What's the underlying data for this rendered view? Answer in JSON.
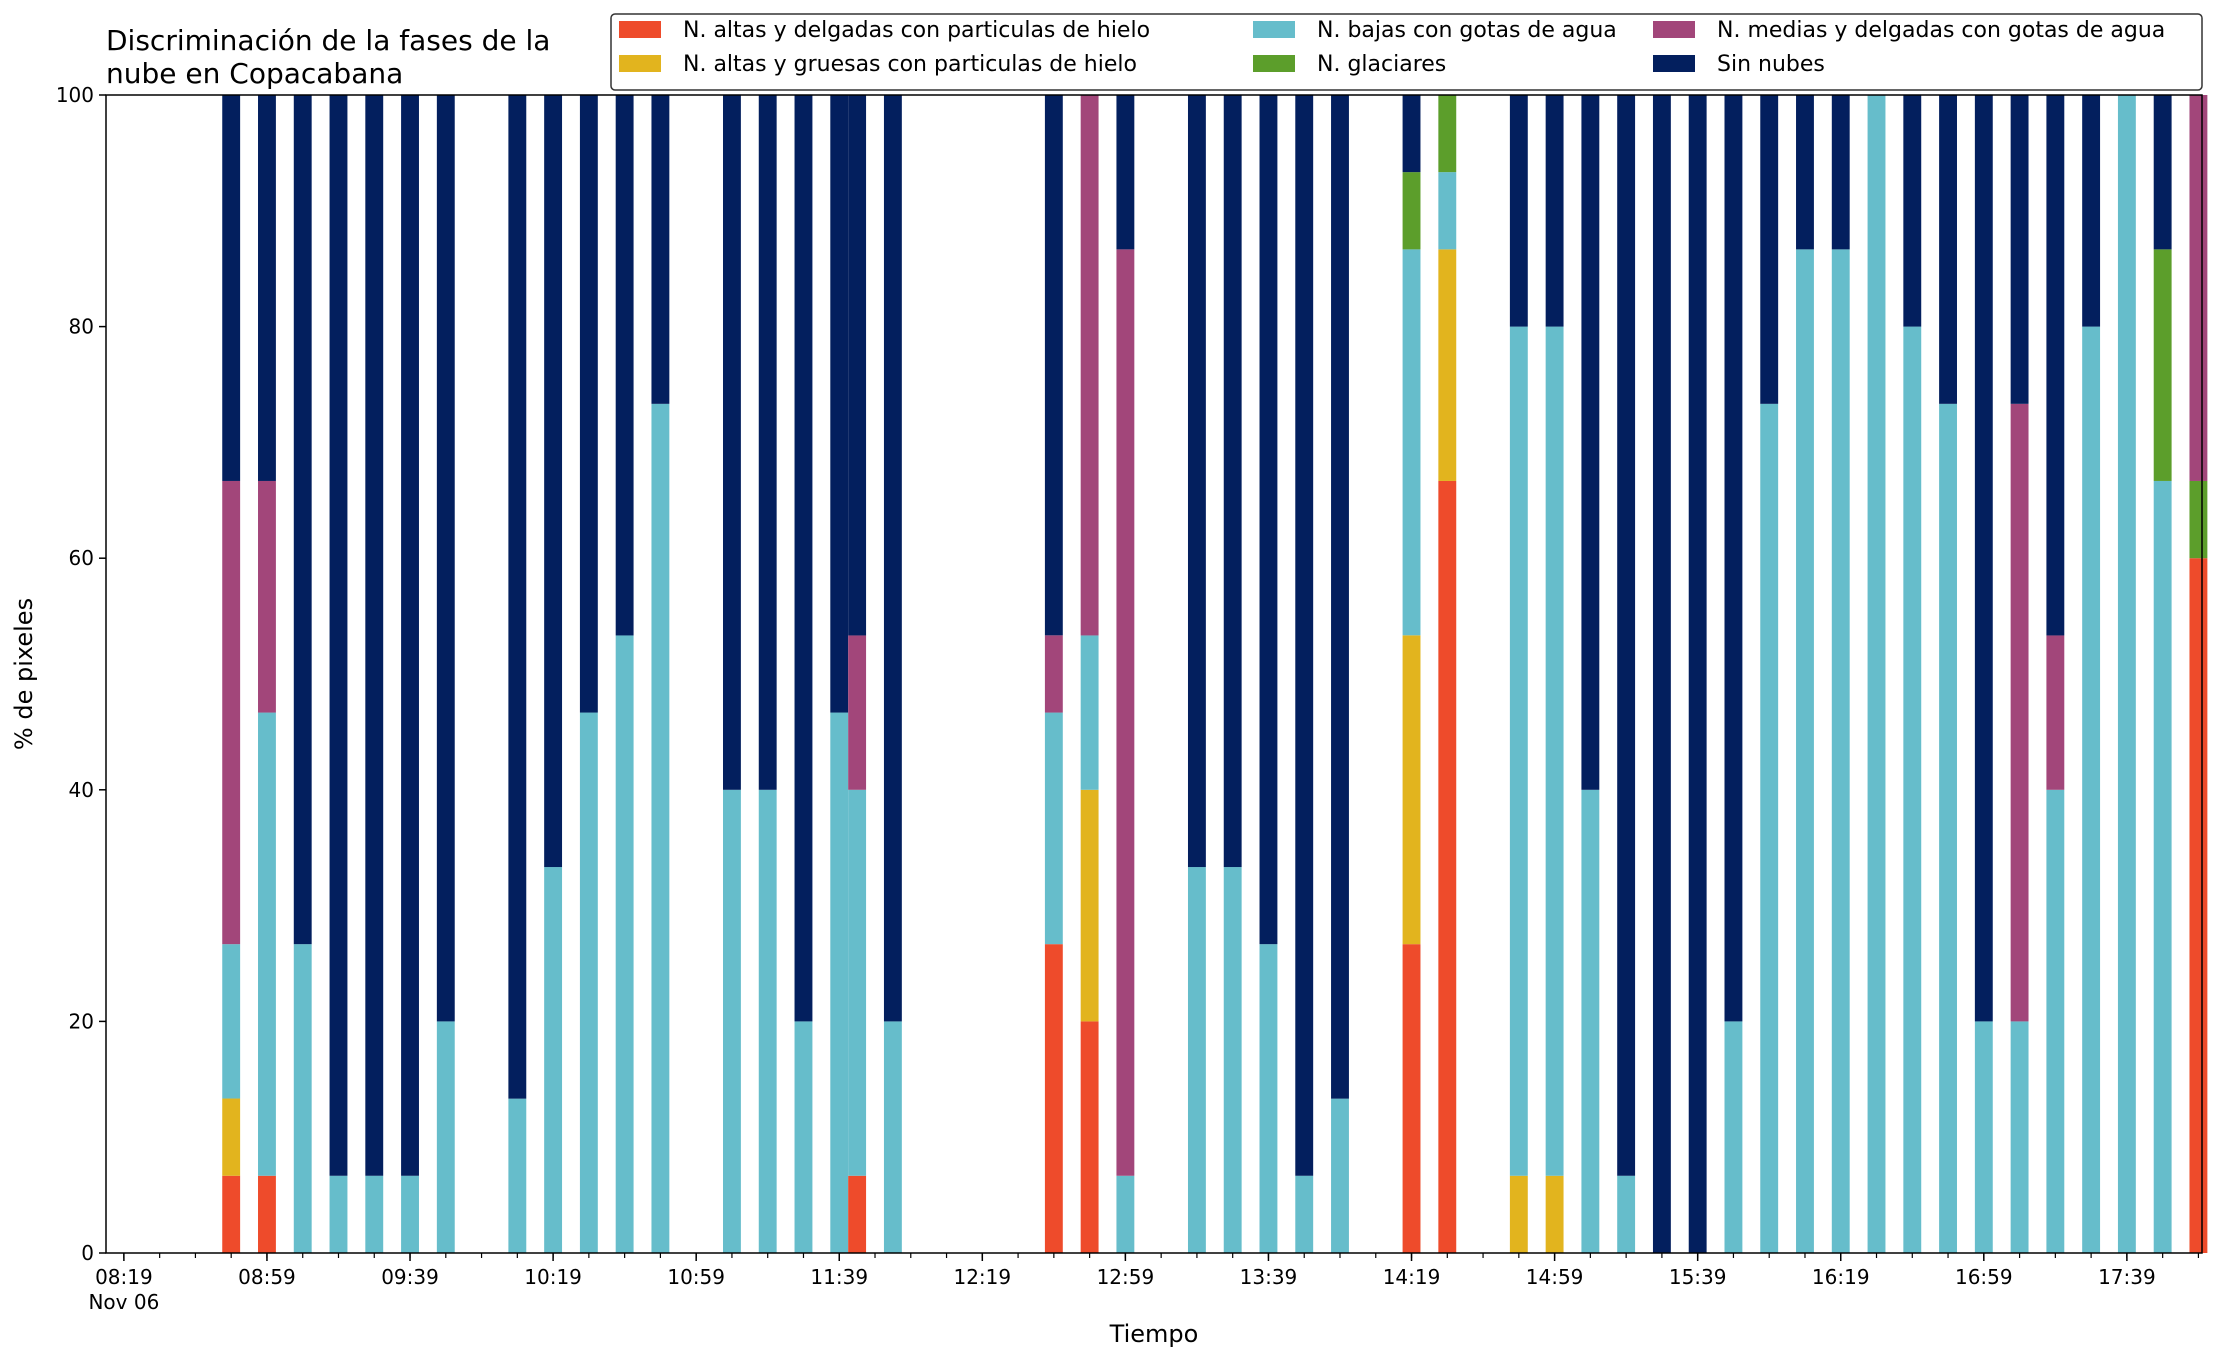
{
  "chart_data": {
    "type": "bar",
    "stacked": true,
    "title_lines": [
      "Discriminación de la fases de la",
      "nube en Copacabana"
    ],
    "xlabel": "Tiempo",
    "ylabel": "% de pixeles",
    "ylim": [
      0,
      100
    ],
    "yticks": [
      0,
      20,
      40,
      60,
      80,
      100
    ],
    "xlim": [
      "08:14",
      "18:00"
    ],
    "xticks": [
      {
        "time": "08:19",
        "label": "08:19",
        "sublabel": "Nov 06"
      },
      {
        "time": "08:59",
        "label": "08:59"
      },
      {
        "time": "09:39",
        "label": "09:39"
      },
      {
        "time": "10:19",
        "label": "10:19"
      },
      {
        "time": "10:59",
        "label": "10:59"
      },
      {
        "time": "11:39",
        "label": "11:39"
      },
      {
        "time": "12:19",
        "label": "12:19"
      },
      {
        "time": "12:59",
        "label": "12:59"
      },
      {
        "time": "13:39",
        "label": "13:39"
      },
      {
        "time": "14:19",
        "label": "14:19"
      },
      {
        "time": "14:59",
        "label": "14:59"
      },
      {
        "time": "15:39",
        "label": "15:39"
      },
      {
        "time": "16:19",
        "label": "16:19"
      },
      {
        "time": "16:59",
        "label": "16:59"
      },
      {
        "time": "17:39",
        "label": "17:39"
      }
    ],
    "grid": false,
    "legend_position": "top-right",
    "series": [
      {
        "name": "N. altas y delgadas con particulas de hielo",
        "color": "#EE4B2B"
      },
      {
        "name": "N. altas y gruesas con particulas de hielo",
        "color": "#E2B41E"
      },
      {
        "name": "N. bajas con gotas de agua",
        "color": "#66BDCB"
      },
      {
        "name": "N. glaciares",
        "color": "#5C9E2B"
      },
      {
        "name": "N. medias y delgadas con gotas de agua",
        "color": "#A2467A"
      },
      {
        "name": "Sin nubes",
        "color": "#031F5E"
      }
    ],
    "x": [
      "08:49",
      "08:59",
      "09:09",
      "09:19",
      "09:29",
      "09:39",
      "09:49",
      "10:09",
      "10:19",
      "10:29",
      "10:39",
      "10:49",
      "11:09",
      "11:19",
      "11:29",
      "11:39",
      "11:44",
      "11:54",
      "12:39",
      "12:49",
      "12:59",
      "13:19",
      "13:29",
      "13:39",
      "13:49",
      "13:59",
      "14:19",
      "14:29",
      "14:49",
      "14:59",
      "15:09",
      "15:19",
      "15:29",
      "15:39",
      "15:49",
      "15:59",
      "16:09",
      "16:19",
      "16:29",
      "16:39",
      "16:49",
      "16:59",
      "17:09",
      "17:19",
      "17:29",
      "17:39",
      "17:49",
      "17:59"
    ],
    "values": [
      [
        6.67,
        6.67,
        0,
        0,
        0,
        0,
        0,
        0,
        0,
        0,
        0,
        0,
        0,
        0,
        0,
        0,
        6.67,
        0,
        26.67,
        20,
        0,
        0,
        0,
        0,
        0,
        0,
        26.67,
        66.67,
        0,
        0,
        0,
        0,
        0,
        0,
        0,
        0,
        0,
        0,
        0,
        0,
        0,
        0,
        0,
        0,
        0,
        0,
        0,
        60
      ],
      [
        6.67,
        0,
        0,
        0,
        0,
        0,
        0,
        0,
        0,
        0,
        0,
        0,
        0,
        0,
        0,
        0,
        0,
        0,
        0,
        20,
        0,
        0,
        0,
        0,
        0,
        0,
        26.67,
        20,
        6.67,
        6.67,
        0,
        0,
        0,
        0,
        0,
        0,
        0,
        0,
        0,
        0,
        0,
        0,
        0,
        0,
        0,
        0,
        0,
        0
      ],
      [
        13.33,
        40,
        26.67,
        6.67,
        6.67,
        6.67,
        20,
        13.33,
        33.33,
        46.67,
        53.33,
        73.33,
        40,
        40,
        20,
        46.67,
        33.33,
        20,
        20,
        13.33,
        6.67,
        33.33,
        33.33,
        26.67,
        6.67,
        13.33,
        33.33,
        6.67,
        73.33,
        73.33,
        40,
        6.67,
        0,
        0,
        20,
        73.33,
        86.67,
        86.67,
        100,
        80,
        73.33,
        20,
        20,
        40,
        80,
        100,
        66.67,
        0
      ],
      [
        0,
        0,
        0,
        0,
        0,
        0,
        0,
        0,
        0,
        0,
        0,
        0,
        0,
        0,
        0,
        0,
        0,
        0,
        0,
        0,
        0,
        0,
        0,
        0,
        0,
        0,
        6.67,
        6.67,
        0,
        0,
        0,
        0,
        0,
        0,
        0,
        0,
        0,
        0,
        0,
        0,
        0,
        0,
        0,
        0,
        0,
        0,
        20,
        6.67
      ],
      [
        40,
        20,
        0,
        0,
        0,
        0,
        0,
        0,
        0,
        0,
        0,
        0,
        0,
        0,
        0,
        0,
        13.33,
        0,
        6.67,
        46.67,
        80,
        0,
        0,
        0,
        0,
        0,
        0,
        0,
        0,
        0,
        0,
        0,
        0,
        0,
        0,
        0,
        0,
        0,
        0,
        0,
        0,
        0,
        53.33,
        13.33,
        0,
        0,
        0,
        33.33
      ],
      [
        33.33,
        33.33,
        73.33,
        93.33,
        93.33,
        93.33,
        80,
        86.67,
        66.67,
        53.33,
        46.67,
        26.67,
        60,
        60,
        80,
        53.33,
        46.67,
        80,
        46.67,
        0,
        13.33,
        66.67,
        66.67,
        73.33,
        93.33,
        86.67,
        6.67,
        0,
        20,
        20,
        60,
        93.33,
        100,
        100,
        80,
        26.67,
        13.33,
        13.33,
        0,
        20,
        26.67,
        80,
        26.67,
        46.67,
        20,
        0,
        13.33,
        0
      ]
    ]
  }
}
